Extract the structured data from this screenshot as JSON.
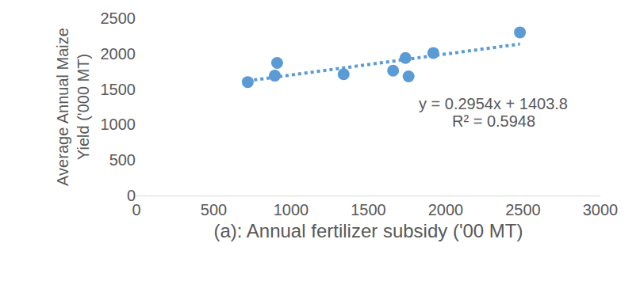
{
  "chart_data": {
    "type": "scatter",
    "xlabel": "(a): Annual fertilizer subsidy ('00 MT)",
    "ylabel": [
      "Average Annual Maize",
      "Yield ('000 MT)"
    ],
    "xlim": [
      0,
      3000
    ],
    "xticks": [
      0,
      500,
      1000,
      1500,
      2000,
      2500,
      3000
    ],
    "ylim": [
      0,
      2500
    ],
    "yticks": [
      0,
      500,
      1000,
      1500,
      2000,
      2500
    ],
    "grid": false,
    "series": [
      {
        "type": "scatter",
        "marker": "circle",
        "color": "#5b9bd5",
        "x": [
          720,
          895,
          910,
          1340,
          1660,
          1740,
          1760,
          1920,
          2480
        ],
        "values": [
          1600,
          1690,
          1870,
          1710,
          1760,
          1940,
          1680,
          2010,
          2300
        ]
      },
      {
        "type": "line",
        "line_style": "dotted",
        "color": "#5b9bd5",
        "x": [
          720,
          2480
        ],
        "values": [
          1616.5,
          2136.4
        ]
      }
    ],
    "annotations": [
      "y = 0.2954x + 1403.8",
      "R² = 0.5948"
    ]
  }
}
